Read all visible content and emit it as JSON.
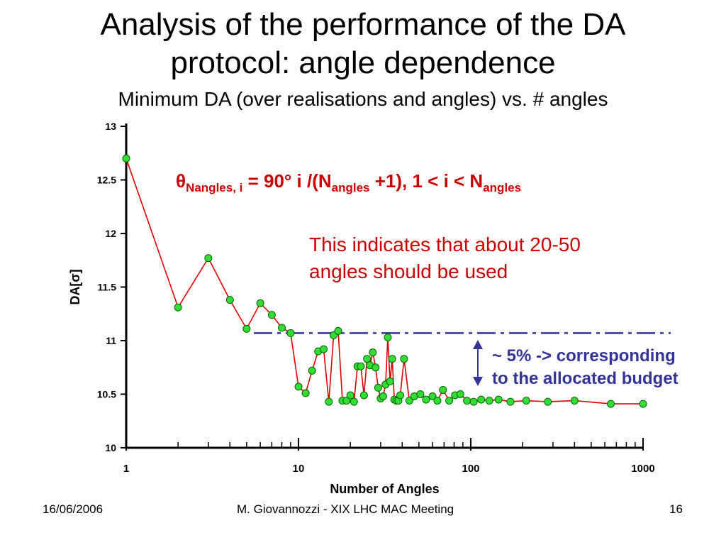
{
  "slide": {
    "title_line1": "Analysis of the performance of the DA",
    "title_line2": "protocol: angle dependence",
    "subtitle": "Minimum DA (over realisations and angles) vs. # angles",
    "formula": {
      "theta": "θ",
      "sub1": "Nangles, i",
      "mid1": " = 90° i /(N",
      "sub2": "angles",
      "mid2": " +1), 1 < i < N",
      "sub3": "angles"
    },
    "note_line1": "This indicates that about 20-50",
    "note_line2": "angles should be used",
    "budget_line1": "~ 5% -> corresponding",
    "budget_line2": "to the allocated budget",
    "footer_date": "16/06/2006",
    "footer_center": "M. Giovannozzi - XIX LHC MAC Meeting",
    "footer_page": "16"
  },
  "colors": {
    "series_line": "#e00000",
    "marker_fill": "#33dd33",
    "marker_stroke": "#006600",
    "annotation": "#333399",
    "note_text": "#cc0000"
  },
  "chart_data": {
    "type": "scatter",
    "xlabel": "Number of Angles",
    "ylabel": "DA[σ]",
    "xscale": "log",
    "xlim": [
      1,
      1000
    ],
    "ylim": [
      10,
      13
    ],
    "x_ticks": [
      "1",
      "10",
      "100",
      "1000"
    ],
    "y_ticks": [
      "10",
      "10.5",
      "11",
      "11.5",
      "12",
      "12.5",
      "13"
    ],
    "grid": false,
    "reference_level": 11.07,
    "series": [
      {
        "points": [
          [
            1,
            12.7
          ],
          [
            2,
            11.31
          ],
          [
            3,
            11.77
          ],
          [
            4,
            11.38
          ],
          [
            5,
            11.11
          ],
          [
            6,
            11.35
          ],
          [
            7,
            11.24
          ],
          [
            8,
            11.12
          ],
          [
            9,
            11.07
          ],
          [
            10,
            10.57
          ],
          [
            11,
            10.51
          ],
          [
            12,
            10.72
          ],
          [
            13,
            10.9
          ],
          [
            14,
            10.92
          ],
          [
            15,
            10.43
          ],
          [
            16,
            11.05
          ],
          [
            17,
            11.09
          ],
          [
            18,
            10.44
          ],
          [
            19,
            10.44
          ],
          [
            20,
            10.49
          ],
          [
            21,
            10.43
          ],
          [
            22,
            10.76
          ],
          [
            23,
            10.76
          ],
          [
            24,
            10.49
          ],
          [
            25,
            10.83
          ],
          [
            26,
            10.77
          ],
          [
            27,
            10.89
          ],
          [
            28,
            10.75
          ],
          [
            29,
            10.56
          ],
          [
            30,
            10.46
          ],
          [
            31,
            10.48
          ],
          [
            32,
            10.59
          ],
          [
            33,
            11.03
          ],
          [
            34,
            10.62
          ],
          [
            35,
            10.83
          ],
          [
            36,
            10.45
          ],
          [
            37,
            10.44
          ],
          [
            38,
            10.44
          ],
          [
            39,
            10.49
          ],
          [
            41,
            10.83
          ],
          [
            44,
            10.44
          ],
          [
            47,
            10.48
          ],
          [
            51,
            10.5
          ],
          [
            55,
            10.45
          ],
          [
            60,
            10.48
          ],
          [
            64,
            10.44
          ],
          [
            69,
            10.54
          ],
          [
            75,
            10.44
          ],
          [
            81,
            10.49
          ],
          [
            87,
            10.5
          ],
          [
            95,
            10.44
          ],
          [
            104,
            10.43
          ],
          [
            115,
            10.45
          ],
          [
            128,
            10.44
          ],
          [
            145,
            10.45
          ],
          [
            170,
            10.43
          ],
          [
            210,
            10.44
          ],
          [
            280,
            10.43
          ],
          [
            400,
            10.44
          ],
          [
            650,
            10.41
          ],
          [
            1000,
            10.41
          ]
        ]
      }
    ]
  }
}
